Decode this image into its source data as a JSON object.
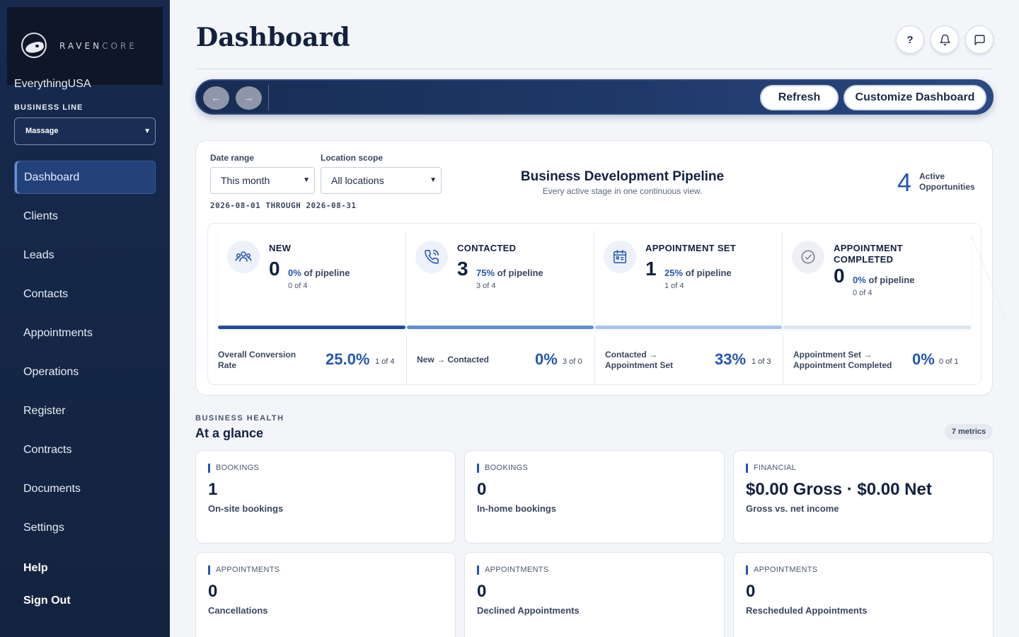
{
  "brand": {
    "name_main": "RAVEN",
    "name_accent": "CORE",
    "company": "EverythingUSA"
  },
  "business_line": {
    "label": "BUSINESS LINE",
    "selected": "Massage"
  },
  "nav": {
    "items": [
      {
        "label": "Dashboard"
      },
      {
        "label": "Clients"
      },
      {
        "label": "Leads"
      },
      {
        "label": "Contacts"
      },
      {
        "label": "Appointments"
      },
      {
        "label": "Operations"
      },
      {
        "label": "Register"
      },
      {
        "label": "Contracts"
      },
      {
        "label": "Documents"
      },
      {
        "label": "Settings"
      }
    ],
    "help": "Help",
    "sign_out": "Sign Out"
  },
  "header": {
    "title": "Dashboard",
    "help_icon_text": "?"
  },
  "toolbar": {
    "back": "←",
    "forward": "→",
    "refresh": "Refresh",
    "customize": "Customize Dashboard"
  },
  "filters": {
    "date_range_label": "Date range",
    "date_range_value": "This month",
    "location_label": "Location scope",
    "location_value": "All locations",
    "date_span": "2026-08-01 THROUGH 2026-08-31"
  },
  "pipeline": {
    "title": "Business Development Pipeline",
    "subtitle": "Every active stage in one continuous view.",
    "active_count": "4",
    "active_label_1": "Active",
    "active_label_2": "Opportunities",
    "stages": [
      {
        "title": "NEW",
        "count": "0",
        "pct": "0%",
        "pct_suffix": "of pipeline",
        "of": "0 of 4",
        "bar_fraction": 0.0
      },
      {
        "title": "CONTACTED",
        "count": "3",
        "pct": "75%",
        "pct_suffix": "of pipeline",
        "of": "3 of 4",
        "bar_fraction": 0.75
      },
      {
        "title": "APPOINTMENT SET",
        "count": "1",
        "pct": "25%",
        "pct_suffix": "of pipeline",
        "of": "1 of 4",
        "bar_fraction": 0.25
      },
      {
        "title": "APPOINTMENT COMPLETED",
        "count": "0",
        "pct": "0%",
        "pct_suffix": "of pipeline",
        "of": "0 of 4",
        "bar_fraction": 0.0
      }
    ],
    "conversions": [
      {
        "label": "Overall Conversion Rate",
        "value": "25.0%",
        "of": "1 of 4"
      },
      {
        "label": "New → Contacted",
        "value": "0%",
        "of": "3 of 0"
      },
      {
        "label": "Contacted → Appointment Set",
        "value": "33%",
        "of": "1 of 3"
      },
      {
        "label": "Appointment Set → Appointment Completed",
        "value": "0%",
        "of": "0 of 1"
      }
    ]
  },
  "health": {
    "kicker": "BUSINESS HEALTH",
    "title": "At a glance",
    "metrics_count": "7 metrics",
    "cards": [
      {
        "category": "BOOKINGS",
        "value": "1",
        "desc": "On-site bookings"
      },
      {
        "category": "BOOKINGS",
        "value": "0",
        "desc": "In-home bookings"
      },
      {
        "category": "FINANCIAL",
        "value": "$0.00 Gross · $0.00 Net",
        "desc": "Gross vs. net income"
      },
      {
        "category": "APPOINTMENTS",
        "value": "0",
        "desc": "Cancellations"
      },
      {
        "category": "APPOINTMENTS",
        "value": "0",
        "desc": "Declined Appointments"
      },
      {
        "category": "APPOINTMENTS",
        "value": "0",
        "desc": "Rescheduled Appointments"
      }
    ]
  },
  "colors": {
    "accent": "#2457b0",
    "sidebar": "#172a4e",
    "bar_dark": "#1f4f9a",
    "bar_mid": "#5a8fd8",
    "bar_light": "#a9c4ea",
    "bar_empty": "#dde4ef"
  },
  "icons": {
    "help": "question-icon",
    "bell": "bell-icon",
    "chat": "chat-bubble-icon",
    "stages": [
      "people-icon",
      "phone-icon",
      "calendar-icon",
      "check-circle-icon"
    ]
  }
}
